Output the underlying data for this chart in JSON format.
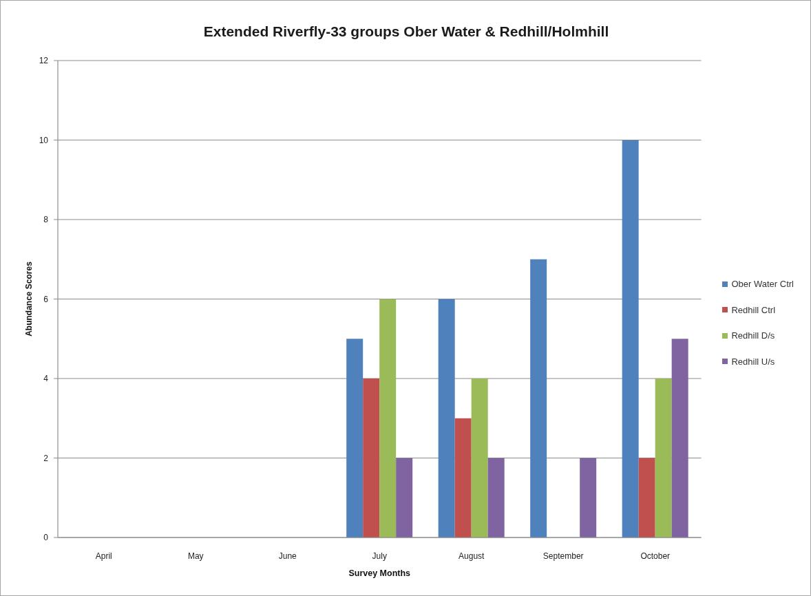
{
  "chart_data": {
    "type": "bar",
    "title": "Extended Riverfly-33 groups Ober Water & Redhill/Holmhill",
    "xlabel": "Survey Months",
    "ylabel": "Abundance Scores",
    "categories": [
      "April",
      "May",
      "June",
      "July",
      "August",
      "September",
      "October"
    ],
    "series": [
      {
        "name": "Ober Water Ctrl",
        "color": "#4f81bd",
        "values": [
          null,
          null,
          null,
          5,
          6,
          7,
          10
        ]
      },
      {
        "name": "Redhill Ctrl",
        "color": "#c0504d",
        "values": [
          null,
          null,
          null,
          4,
          3,
          null,
          2
        ]
      },
      {
        "name": "Redhill D/s",
        "color": "#9bbb59",
        "values": [
          null,
          null,
          null,
          6,
          4,
          null,
          4
        ]
      },
      {
        "name": "Redhill U/s",
        "color": "#8064a2",
        "values": [
          null,
          null,
          null,
          2,
          2,
          2,
          5
        ]
      }
    ],
    "ylim": [
      0,
      12
    ],
    "yticks": [
      0,
      2,
      4,
      6,
      8,
      10,
      12
    ],
    "grid": "y",
    "legend": "right"
  }
}
